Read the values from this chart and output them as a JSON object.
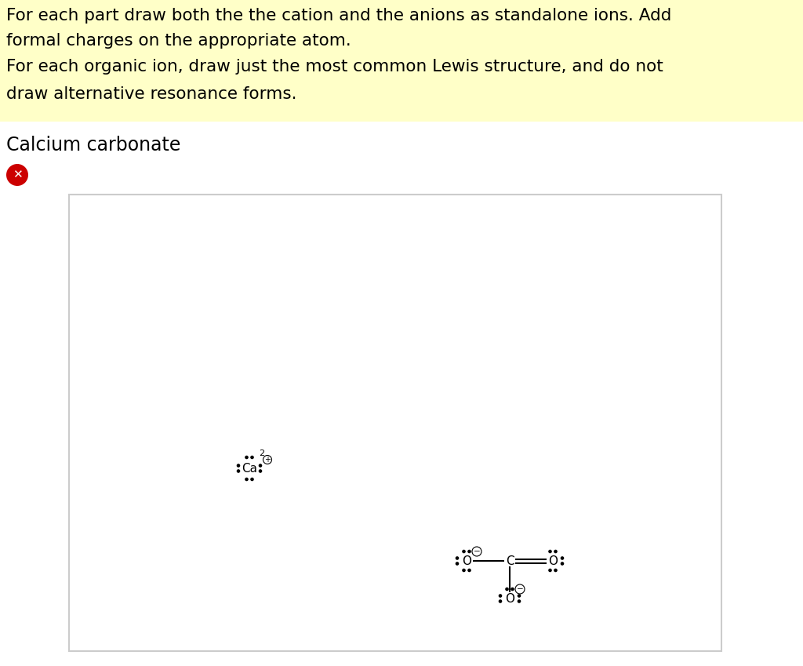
{
  "instruction_lines": [
    "For each part draw both the the cation and the anions as standalone ions. Add",
    "formal charges on the appropriate atom.",
    "For each organic ion, draw just the most common Lewis structure, and do not",
    "draw alternative resonance forms."
  ],
  "instruction_bg": "#FFFFC8",
  "page_bg": "#FFFFFF",
  "box_bg": "#FFFFFF",
  "box_border": "#CCCCCC",
  "font_color": "#000000",
  "title_text": "Calcium carbonate",
  "title_fontsize": 17,
  "instruction_fontsize": 15.5,
  "error_icon_color": "#CC0000",
  "ca_label": "Ca",
  "ca_charge_num": "2",
  "dot_color": "#000000"
}
